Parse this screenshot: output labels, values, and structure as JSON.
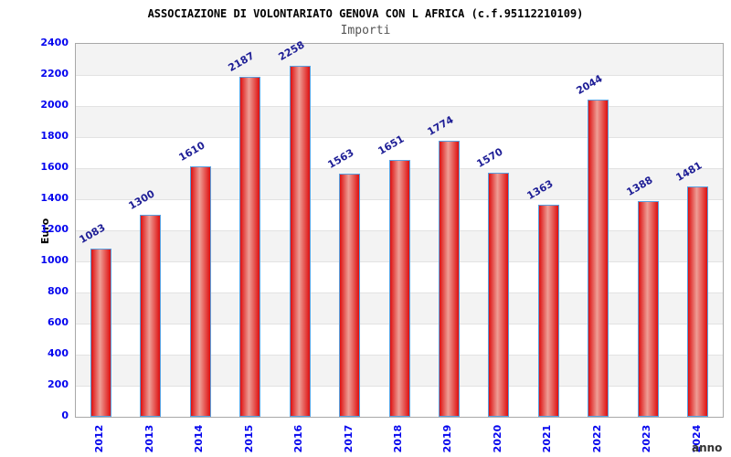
{
  "header": {
    "title": "ASSOCIAZIONE DI VOLONTARIATO GENOVA CON L AFRICA (c.f.95112210109)",
    "subtitle": "Importi"
  },
  "chart_data": {
    "type": "bar",
    "title": "ASSOCIAZIONE DI VOLONTARIATO GENOVA CON L AFRICA (c.f.95112210109)",
    "subtitle": "Importi",
    "xlabel": "anno",
    "ylabel": "Euro",
    "categories": [
      "2012",
      "2013",
      "2014",
      "2015",
      "2016",
      "2017",
      "2018",
      "2019",
      "2020",
      "2021",
      "2022",
      "2023",
      "2024"
    ],
    "values": [
      1083,
      1300,
      1610,
      2187,
      2258,
      1563,
      1651,
      1774,
      1570,
      1363,
      2044,
      1388,
      1481
    ],
    "ylim": [
      0,
      2400
    ],
    "ytick_step": 200,
    "yticks": [
      0,
      200,
      400,
      600,
      800,
      1000,
      1200,
      1400,
      1600,
      1800,
      2000,
      2200,
      2400
    ],
    "grid": "horizontal gridlines every 200 with alternating gray/white bands",
    "legend": null,
    "bar_label_rotation_deg": -30,
    "x_label_rotation_deg": -90
  },
  "colors": {
    "tick_label_blue": "#0505ee",
    "value_label_navy": "#1e1e96",
    "bar_edge_red": "#dd1010",
    "bar_center_light": "#ee9e96",
    "bar_border_blue": "#58a0e0",
    "band_gray": "#f3f3f3",
    "band_white": "#ffffff",
    "gridline_gray": "#e2e2e2",
    "plot_border": "#a8a8a8",
    "title_black": "#000000",
    "subtitle_gray": "#555555",
    "xlabel_dark": "#333333"
  }
}
